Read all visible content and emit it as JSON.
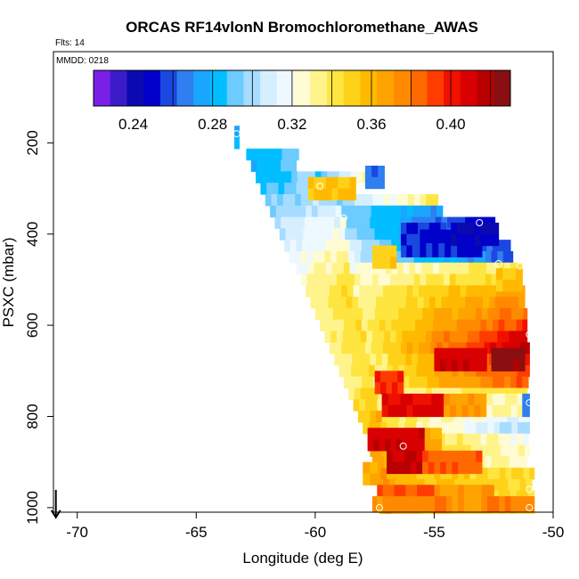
{
  "chart_data": {
    "type": "heatmap",
    "title": "ORCAS RF14vlonN Bromochloromethane_AWAS",
    "annotations": {
      "flights": "Flts: 14",
      "date": "MMDD: 0218"
    },
    "xlabel": "Longitude (deg E)",
    "ylabel": "PSXC (mbar)",
    "xlim": [
      -71,
      -50
    ],
    "ylim": [
      1010,
      0
    ],
    "x_ticks": [
      -70,
      -65,
      -60,
      -55,
      -50
    ],
    "x_tick_labels": [
      "-70",
      "-65",
      "-60",
      "-55",
      "-50"
    ],
    "y_ticks": [
      200,
      400,
      600,
      800,
      1000
    ],
    "y_tick_labels": [
      "200",
      "400",
      "600",
      "800",
      "1000"
    ],
    "colorbar": {
      "range": [
        0.22,
        0.43
      ],
      "ticks": [
        0.24,
        0.28,
        0.32,
        0.36,
        0.4
      ],
      "tick_labels": [
        "0.24",
        "0.28",
        "0.32",
        "0.36",
        "0.40"
      ],
      "boundaries": [
        0.26,
        0.28,
        0.3,
        0.32,
        0.34,
        0.36,
        0.38,
        0.4,
        0.42
      ],
      "colors": [
        "#7a1fe8",
        "#3b1cc8",
        "#0a0ab0",
        "#0000c8",
        "#1a48e0",
        "#2f7ff0",
        "#1aa6ff",
        "#00beff",
        "#6ccbff",
        "#a6dcff",
        "#d6efff",
        "#eef9ff",
        "#fffbd2",
        "#fff48c",
        "#ffe540",
        "#ffd21a",
        "#ffba00",
        "#ffa300",
        "#ff8a00",
        "#ff6a00",
        "#ff3c00",
        "#f01000",
        "#d80000",
        "#b80000",
        "#8a0f12"
      ]
    },
    "arrow_marker": {
      "longitude": -70.9,
      "pressure": 1000,
      "direction": "down"
    },
    "bin_size": {
      "longitude": 0.25,
      "pressure": 25
    },
    "rows": [
      {
        "p": 175,
        "lonMin": -63.4,
        "lonMax": -63.2,
        "lonRef": -63.3,
        "a": 0.26,
        "b": 0.26
      },
      {
        "p": 200,
        "lonMin": -63.4,
        "lonMax": -63.2,
        "lonRef": -63.3,
        "a": 0.265,
        "b": 0.265
      },
      {
        "p": 225,
        "lonMin": -62.9,
        "lonMax": -60.7,
        "lonRef": -60.7,
        "a": 0.275,
        "b": 0.29
      },
      {
        "p": 250,
        "lonMin": -62.7,
        "lonMax": -60.8,
        "lonRef": -60.8,
        "a": 0.275,
        "b": 0.3
      },
      {
        "p": 275,
        "lonMin": -62.5,
        "lonMax": -57.1,
        "lonRef": -59.9,
        "a": 0.28,
        "b": 0.345
      },
      {
        "p": 300,
        "lonMin": -62.3,
        "lonMax": -59.0,
        "lonRef": -59.0,
        "a": 0.285,
        "b": 0.345
      },
      {
        "p": 325,
        "lonMin": -62.1,
        "lonMax": -54.8,
        "lonRef": -59.0,
        "a": 0.29,
        "b": 0.34
      },
      {
        "p": 350,
        "lonMin": -61.9,
        "lonMax": -54.6,
        "lonRef": -59.0,
        "a": 0.295,
        "b": 0.27
      },
      {
        "p": 375,
        "lonMin": -61.7,
        "lonMax": -52.4,
        "lonRef": -58.8,
        "a": 0.3,
        "b": 0.245
      },
      {
        "p": 400,
        "lonMin": -61.5,
        "lonMax": -52.4,
        "lonRef": -58.8,
        "a": 0.305,
        "b": 0.25
      },
      {
        "p": 425,
        "lonMin": -61.3,
        "lonMax": -51.7,
        "lonRef": -58.6,
        "a": 0.31,
        "b": 0.255
      },
      {
        "p": 450,
        "lonMin": -61.1,
        "lonMax": -51.7,
        "lonRef": -58.6,
        "a": 0.315,
        "b": 0.26
      },
      {
        "p": 475,
        "lonMin": -60.8,
        "lonMax": -51.3,
        "lonRef": -58.5,
        "a": 0.32,
        "b": 0.34
      },
      {
        "p": 500,
        "lonMin": -60.6,
        "lonMax": -51.3,
        "lonRef": -58.4,
        "a": 0.325,
        "b": 0.35
      },
      {
        "p": 525,
        "lonMin": -60.4,
        "lonMax": -51.2,
        "lonRef": -58.3,
        "a": 0.33,
        "b": 0.365
      },
      {
        "p": 550,
        "lonMin": -60.2,
        "lonMax": -51.2,
        "lonRef": -58.2,
        "a": 0.33,
        "b": 0.375
      },
      {
        "p": 575,
        "lonMin": -60.0,
        "lonMax": -51.1,
        "lonRef": -58.1,
        "a": 0.33,
        "b": 0.385
      },
      {
        "p": 600,
        "lonMin": -59.8,
        "lonMax": -51.1,
        "lonRef": -58.0,
        "a": 0.33,
        "b": 0.395
      },
      {
        "p": 625,
        "lonMin": -59.6,
        "lonMax": -51.0,
        "lonRef": -57.9,
        "a": 0.33,
        "b": 0.41
      },
      {
        "p": 650,
        "lonMin": -59.4,
        "lonMax": -51.0,
        "lonRef": -57.8,
        "a": 0.33,
        "b": 0.42
      },
      {
        "p": 675,
        "lonMin": -59.2,
        "lonMax": -51.0,
        "lonRef": -57.7,
        "a": 0.33,
        "b": 0.4
      },
      {
        "p": 700,
        "lonMin": -59.0,
        "lonMax": -51.0,
        "lonRef": -57.6,
        "a": 0.33,
        "b": 0.395
      },
      {
        "p": 725,
        "lonMin": -58.8,
        "lonMax": -51.0,
        "lonRef": -57.5,
        "a": 0.33,
        "b": 0.39
      },
      {
        "p": 750,
        "lonMin": -58.6,
        "lonMax": -51.0,
        "lonRef": -57.4,
        "a": 0.335,
        "b": 0.34
      },
      {
        "p": 775,
        "lonMin": -58.4,
        "lonMax": -51.0,
        "lonRef": -57.3,
        "a": 0.34,
        "b": 0.28
      },
      {
        "p": 800,
        "lonMin": -58.2,
        "lonMax": -51.0,
        "lonRef": -57.2,
        "a": 0.345,
        "b": 0.31
      },
      {
        "p": 825,
        "lonMin": -58.0,
        "lonMax": -51.0,
        "lonRef": -57.2,
        "a": 0.35,
        "b": 0.3
      },
      {
        "p": 850,
        "lonMin": -57.8,
        "lonMax": -51.0,
        "lonRef": -57.1,
        "a": 0.355,
        "b": 0.32
      },
      {
        "p": 875,
        "lonMin": -57.7,
        "lonMax": -51.0,
        "lonRef": -57.1,
        "a": 0.36,
        "b": 0.325
      },
      {
        "p": 900,
        "lonMin": -57.6,
        "lonMax": -51.0,
        "lonRef": -57.0,
        "a": 0.36,
        "b": 0.325
      },
      {
        "p": 925,
        "lonMin": -57.5,
        "lonMax": -50.8,
        "lonRef": -57.0,
        "a": 0.36,
        "b": 0.345
      },
      {
        "p": 950,
        "lonMin": -57.4,
        "lonMax": -50.8,
        "lonRef": -57.0,
        "a": 0.36,
        "b": 0.345
      },
      {
        "p": 975,
        "lonMin": -57.3,
        "lonMax": -50.8,
        "lonRef": -56.9,
        "a": 0.36,
        "b": 0.345
      },
      {
        "p": 1000,
        "lonMin": -57.3,
        "lonMax": -50.8,
        "lonRef": -56.9,
        "a": 0.36,
        "b": 0.345
      }
    ],
    "patches": [
      {
        "lonMin": -60.3,
        "lonMax": -58.3,
        "pMin": 275,
        "pMax": 325,
        "value": 0.355
      },
      {
        "lonMin": -57.9,
        "lonMax": -57.1,
        "pMin": 250,
        "pMax": 300,
        "value": 0.265
      },
      {
        "lonMin": -57.6,
        "lonMax": -56.6,
        "pMin": 425,
        "pMax": 475,
        "value": 0.35
      },
      {
        "lonMin": -56.4,
        "lonMax": -54.5,
        "pMin": 375,
        "pMax": 450,
        "value": 0.255
      },
      {
        "lonMin": -55.6,
        "lonMax": -53.0,
        "pMin": 390,
        "pMax": 450,
        "value": 0.25
      },
      {
        "lonMin": -54.3,
        "lonMax": -52.3,
        "pMin": 375,
        "pMax": 425,
        "value": 0.245
      },
      {
        "lonMin": -52.4,
        "lonMax": -51.3,
        "pMin": 475,
        "pMax": 525,
        "value": 0.355
      },
      {
        "lonMin": -52.6,
        "lonMax": -51.2,
        "pMin": 650,
        "pMax": 700,
        "value": 0.425
      },
      {
        "lonMin": -55.0,
        "lonMax": -52.8,
        "pMin": 650,
        "pMax": 700,
        "value": 0.41
      },
      {
        "lonMin": -57.5,
        "lonMax": -56.3,
        "pMin": 700,
        "pMax": 750,
        "value": 0.395
      },
      {
        "lonMin": -57.2,
        "lonMax": -54.6,
        "pMin": 750,
        "pMax": 800,
        "value": 0.405
      },
      {
        "lonMin": -54.6,
        "lonMax": -52.8,
        "pMin": 750,
        "pMax": 800,
        "value": 0.37
      },
      {
        "lonMin": -52.8,
        "lonMax": -51.0,
        "pMin": 750,
        "pMax": 800,
        "value": 0.33
      },
      {
        "lonMin": -51.3,
        "lonMax": -51.0,
        "pMin": 750,
        "pMax": 800,
        "value": 0.265
      },
      {
        "lonMin": -57.8,
        "lonMax": -55.4,
        "pMin": 825,
        "pMax": 875,
        "value": 0.41
      },
      {
        "lonMin": -55.4,
        "lonMax": -54.7,
        "pMin": 825,
        "pMax": 875,
        "value": 0.365
      },
      {
        "lonMin": -57.0,
        "lonMax": -55.5,
        "pMin": 875,
        "pMax": 925,
        "value": 0.415
      },
      {
        "lonMin": -55.5,
        "lonMax": -53.0,
        "pMin": 875,
        "pMax": 925,
        "value": 0.385
      },
      {
        "lonMin": -58.0,
        "lonMax": -57.4,
        "pMin": 900,
        "pMax": 950,
        "value": 0.36
      },
      {
        "lonMin": -57.4,
        "lonMax": -55.0,
        "pMin": 950,
        "pMax": 975,
        "value": 0.39
      },
      {
        "lonMin": -55.0,
        "lonMax": -52.5,
        "pMin": 950,
        "pMax": 975,
        "value": 0.37
      },
      {
        "lonMin": -57.2,
        "lonMax": -50.8,
        "pMin": 975,
        "pMax": 1010,
        "value": 0.375
      },
      {
        "lonMin": -57.6,
        "lonMax": -57.2,
        "pMin": 975,
        "pMax": 1010,
        "value": 0.37
      }
    ],
    "markers": [
      {
        "lon": -63.3,
        "p": 180
      },
      {
        "lon": -59.8,
        "p": 295
      },
      {
        "lon": -58.8,
        "p": 365
      },
      {
        "lon": -53.1,
        "p": 375
      },
      {
        "lon": -52.3,
        "p": 465
      },
      {
        "lon": -51.4,
        "p": 470
      },
      {
        "lon": -51.0,
        "p": 620
      },
      {
        "lon": -51.0,
        "p": 770
      },
      {
        "lon": -56.3,
        "p": 865
      },
      {
        "lon": -57.3,
        "p": 1000
      },
      {
        "lon": -51.0,
        "p": 960
      },
      {
        "lon": -51.0,
        "p": 1000
      }
    ]
  }
}
